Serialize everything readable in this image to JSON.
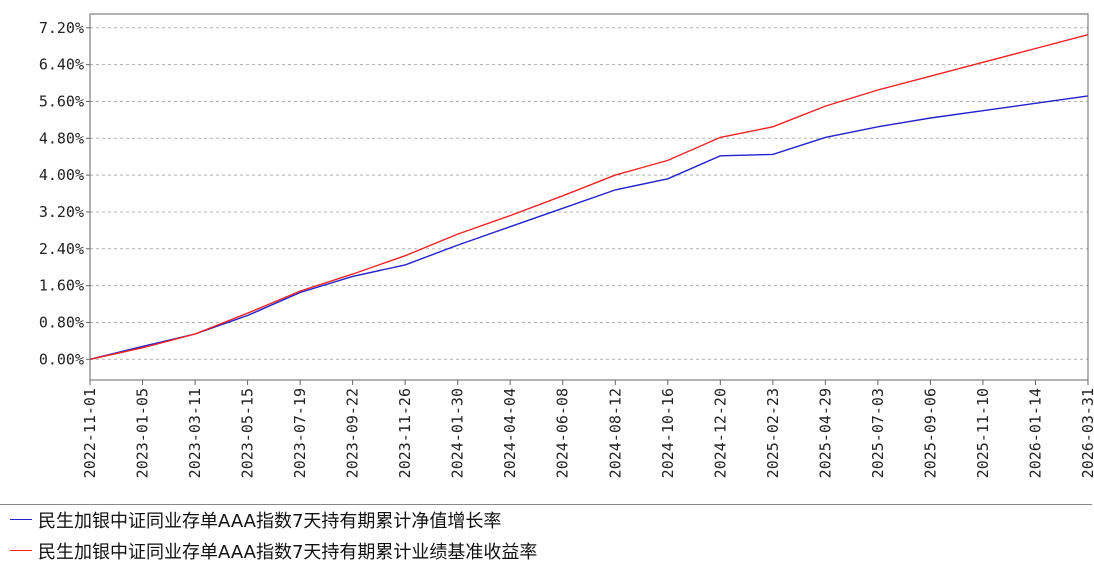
{
  "chart_data": {
    "type": "line",
    "y_tick_labels": [
      "0.00%",
      "0.80%",
      "1.60%",
      "2.40%",
      "3.20%",
      "4.00%",
      "4.80%",
      "5.60%",
      "6.40%",
      "7.20%"
    ],
    "x_tick_labels": [
      "2022-11-01",
      "2023-01-05",
      "2023-03-11",
      "2023-05-15",
      "2023-07-19",
      "2023-09-22",
      "2023-11-26",
      "2024-01-30",
      "2024-04-04",
      "2024-06-08",
      "2024-08-12",
      "2024-10-16",
      "2024-12-20",
      "2025-02-23",
      "2025-04-29",
      "2025-07-03",
      "2025-09-06",
      "2025-11-10",
      "2026-01-14",
      "2026-03-31"
    ],
    "ylim": [
      -0.45,
      7.5
    ],
    "grid": true,
    "legend_position": "bottom",
    "series": [
      {
        "name": "民生加银中证同业存单AAA指数7天持有期累计净值增长率",
        "color": "#2222cc",
        "values": [
          0.0,
          0.28,
          0.55,
          0.95,
          1.45,
          1.8,
          2.05,
          2.48,
          2.88,
          3.28,
          3.68,
          3.92,
          4.42,
          4.45,
          4.82,
          5.05,
          5.24,
          5.4,
          5.56,
          5.72
        ]
      },
      {
        "name": "民生加银中证同业存单AAA指数7天持有期累计业绩基准收益率",
        "color": "#ee2222",
        "values": [
          0.0,
          0.25,
          0.55,
          1.0,
          1.48,
          1.85,
          2.25,
          2.72,
          3.12,
          3.55,
          4.0,
          4.32,
          4.82,
          5.05,
          5.5,
          5.85,
          6.15,
          6.45,
          6.75,
          7.05
        ]
      }
    ]
  }
}
